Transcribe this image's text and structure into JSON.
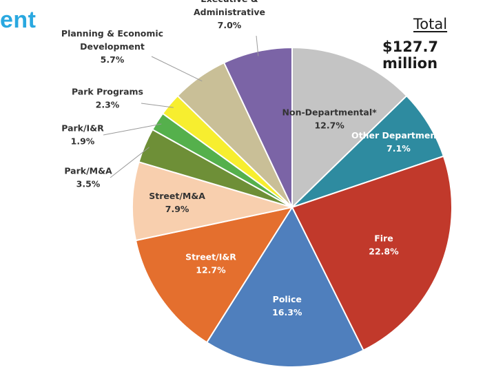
{
  "header": {
    "title_fragment": "ent",
    "total_label": "Total",
    "total_value": "$127.7 million"
  },
  "chart_data": {
    "type": "pie",
    "title": "",
    "total": "$127.7 million",
    "unit": "%",
    "slices": [
      {
        "name": "Non-Departmental*",
        "label": "Non-Departmental*",
        "value": 12.7,
        "value_label": "12.7%",
        "color": "#c4c4c4",
        "label_color": "#333333"
      },
      {
        "name": "Other Departments",
        "label": "Other Departments",
        "value": 7.1,
        "value_label": "7.1%",
        "color": "#2e8ba0",
        "label_color": "#ffffff"
      },
      {
        "name": "Fire",
        "label": "Fire",
        "value": 22.8,
        "value_label": "22.8%",
        "color": "#c1392b",
        "label_color": "#ffffff"
      },
      {
        "name": "Police",
        "label": "Police",
        "value": 16.3,
        "value_label": "16.3%",
        "color": "#4f7fbd",
        "label_color": "#ffffff"
      },
      {
        "name": "Street/I&R",
        "label": "Street/I&R",
        "value": 12.7,
        "value_label": "12.7%",
        "color": "#e46f2e",
        "label_color": "#ffffff"
      },
      {
        "name": "Street/M&A",
        "label": "Street/M&A",
        "value": 7.9,
        "value_label": "7.9%",
        "color": "#f8cfae",
        "label_color": "#333333"
      },
      {
        "name": "Park/M&A",
        "label": "Park/M&A",
        "value": 3.5,
        "value_label": "3.5%",
        "color": "#6e8f37",
        "label_color": "#333333"
      },
      {
        "name": "Park/I&R",
        "label": "Park/I&R",
        "value": 1.9,
        "value_label": "1.9%",
        "color": "#55b04c",
        "label_color": "#333333"
      },
      {
        "name": "Park Programs",
        "label": "Park Programs",
        "value": 2.3,
        "value_label": "2.3%",
        "color": "#f7ee2f",
        "label_color": "#333333"
      },
      {
        "name": "Planning & Economic Development",
        "label": "Planning & Economic\nDevelopment",
        "value": 5.7,
        "value_label": "5.7%",
        "color": "#c9bf97",
        "label_color": "#333333"
      },
      {
        "name": "Executive & Administrative",
        "label": "Executive &\nAdministrative",
        "value": 7.0,
        "value_label": "7.0%",
        "color": "#7b64a6",
        "label_color": "#333333"
      }
    ]
  }
}
